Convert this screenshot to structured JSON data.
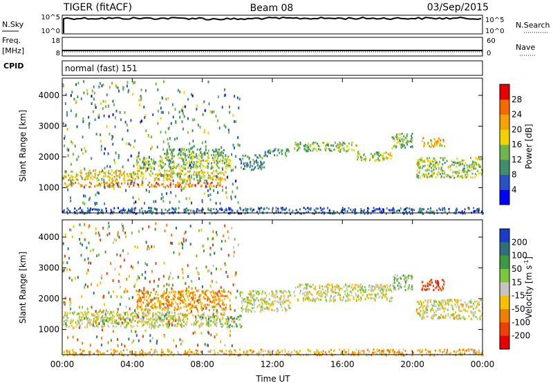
{
  "header": {
    "radar": "TIGER (fitACF)",
    "beam": "Beam 08",
    "date": "03/Sep/2015"
  },
  "panels": {
    "nsky": {
      "label": "N.Sky",
      "left_ticks": [
        "10^5",
        "10^0"
      ],
      "right_ticks": [
        "10^5",
        "10^0"
      ],
      "right_label": "N.Search"
    },
    "freq": {
      "label": "Freq.",
      "unit": "[MHz]",
      "left_ticks": [
        "18",
        "8"
      ],
      "right_ticks": [
        "60",
        "0"
      ],
      "right_label": "Nave"
    },
    "cpid": {
      "label": "CPID",
      "text": "normal (fast) 151"
    }
  },
  "chart_data": [
    {
      "type": "heatmap",
      "name": "power",
      "ylabel": "Slant Range [km]",
      "yticks": [
        "1000",
        "2000",
        "3000",
        "4000"
      ],
      "yticks_values": [
        1000,
        2000,
        3000,
        4000
      ],
      "ylim": [
        180,
        4560
      ],
      "xlim": [
        0,
        24
      ],
      "colorbar_label": "Power [dB]",
      "colorbar_ticks": [
        "4",
        "8",
        "12",
        "16",
        "20",
        "24",
        "28"
      ],
      "colorbar_ticks_values": [
        4,
        8,
        12,
        16,
        20,
        24,
        28
      ],
      "colorbar_range": [
        0,
        32
      ],
      "colorbar_colors": [
        "#0000ff",
        "#2a52c6",
        "#3f8f6e",
        "#6fb64a",
        "#f1d300",
        "#f5a300",
        "#f26a00",
        "#e60000"
      ],
      "bands": [
        {
          "t0": 0.0,
          "t1": 9.2,
          "r0": 1050,
          "r1": 1200,
          "p": 24
        },
        {
          "t0": 0.0,
          "t1": 9.3,
          "r0": 1250,
          "r1": 1600,
          "p": 19
        },
        {
          "t0": 4.2,
          "t1": 9.6,
          "r0": 1650,
          "r1": 2050,
          "p": 15
        },
        {
          "t0": 5.8,
          "t1": 9.2,
          "r0": 2050,
          "r1": 2300,
          "p": 13
        },
        {
          "t0": 10.1,
          "t1": 11.5,
          "r0": 1600,
          "r1": 2100,
          "p": 10
        },
        {
          "t0": 11.5,
          "t1": 13.0,
          "r0": 2050,
          "r1": 2300,
          "p": 11
        },
        {
          "t0": 13.2,
          "t1": 16.8,
          "r0": 2200,
          "r1": 2500,
          "p": 14
        },
        {
          "t0": 16.8,
          "t1": 18.8,
          "r0": 1900,
          "r1": 2200,
          "p": 16
        },
        {
          "t0": 18.8,
          "t1": 20.0,
          "r0": 2300,
          "r1": 2800,
          "p": 14
        },
        {
          "t0": 20.5,
          "t1": 21.8,
          "r0": 2350,
          "r1": 2650,
          "p": 20
        },
        {
          "t0": 20.2,
          "t1": 24.0,
          "r0": 1350,
          "r1": 2000,
          "p": 15
        },
        {
          "t0": 0.0,
          "t1": 24.0,
          "r0": 180,
          "r1": 380,
          "p": 7
        }
      ]
    },
    {
      "type": "heatmap",
      "name": "velocity",
      "ylabel": "Slant Range [km]",
      "xlabel": "Time UT",
      "xticks": [
        "00:00",
        "04:00",
        "08:00",
        "12:00",
        "16:00",
        "20:00",
        "00:00"
      ],
      "xticks_values": [
        0,
        4,
        8,
        12,
        16,
        20,
        24
      ],
      "yticks": [
        "1000",
        "2000",
        "3000",
        "4000"
      ],
      "yticks_values": [
        1000,
        2000,
        3000,
        4000
      ],
      "ylim": [
        180,
        4560
      ],
      "xlim": [
        0,
        24
      ],
      "colorbar_label": "Velocity [m s",
      "colorbar_label_sup": "-1",
      "colorbar_label_end": "]",
      "colorbar_ticks": [
        "200",
        "100",
        "50",
        "15",
        "-15",
        "-50",
        "-100",
        "-200"
      ],
      "colorbar_colors": [
        "#1a3cc8",
        "#2e6f7a",
        "#3c9a40",
        "#7cc63a",
        "#c6c6c0",
        "#f6c000",
        "#f28000",
        "#f04000",
        "#e80000"
      ],
      "bands": [
        {
          "t0": 0.0,
          "t1": 9.4,
          "r0": 1100,
          "r1": 1600,
          "v": 0
        },
        {
          "t0": 4.2,
          "t1": 9.6,
          "r0": 1650,
          "r1": 2300,
          "v": -60
        },
        {
          "t0": 9.4,
          "t1": 10.2,
          "r0": 1100,
          "r1": 1500,
          "v": 40
        },
        {
          "t0": 10.1,
          "t1": 13.0,
          "r0": 1600,
          "r1": 2300,
          "v": 0
        },
        {
          "t0": 13.2,
          "t1": 18.8,
          "r0": 1950,
          "r1": 2500,
          "v": 0
        },
        {
          "t0": 18.8,
          "t1": 20.0,
          "r0": 2300,
          "r1": 2800,
          "v": 30
        },
        {
          "t0": 20.5,
          "t1": 21.8,
          "r0": 2300,
          "r1": 2650,
          "v": -180
        },
        {
          "t0": 20.2,
          "t1": 24.0,
          "r0": 1350,
          "r1": 2000,
          "v": -10
        },
        {
          "t0": 0.0,
          "t1": 24.0,
          "r0": 180,
          "r1": 380,
          "v": -40
        }
      ]
    }
  ]
}
